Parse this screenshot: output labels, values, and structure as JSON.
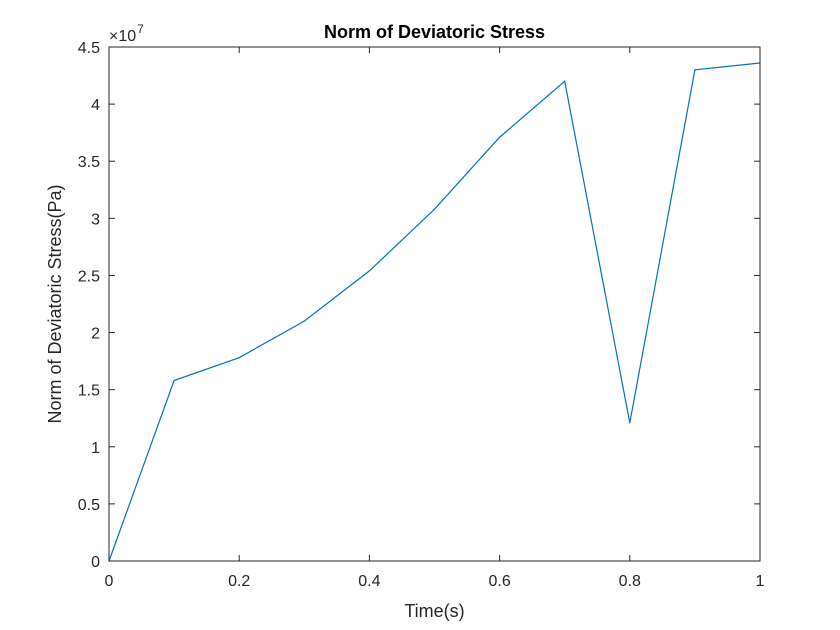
{
  "chart_data": {
    "type": "line",
    "title": "Norm of Deviatoric Stress",
    "xlabel": "Time(s)",
    "ylabel": "Norm of Deviatoric Stress(Pa)",
    "y_multiplier_label": "×10",
    "y_multiplier_exponent": "7",
    "xlim": [
      0,
      1
    ],
    "ylim": [
      0,
      4.5
    ],
    "y_scale_factor": 10000000,
    "grid": false,
    "x_ticks": [
      0,
      0.2,
      0.4,
      0.6,
      0.8,
      1
    ],
    "x_tick_labels": [
      "0",
      "0.2",
      "0.4",
      "0.6",
      "0.8",
      "1"
    ],
    "y_ticks": [
      0,
      0.5,
      1,
      1.5,
      2,
      2.5,
      3,
      3.5,
      4,
      4.5
    ],
    "y_tick_labels": [
      "0",
      "0.5",
      "1",
      "1.5",
      "2",
      "2.5",
      "3",
      "3.5",
      "4",
      "4.5"
    ],
    "series": [
      {
        "color": "#0072bd",
        "x": [
          0,
          0.1,
          0.2,
          0.3,
          0.4,
          0.5,
          0.6,
          0.7,
          0.8,
          0.9,
          1.0
        ],
        "y": [
          0,
          1.58,
          1.78,
          2.1,
          2.54,
          3.08,
          3.71,
          4.2,
          1.21,
          4.3,
          4.36
        ]
      }
    ]
  }
}
